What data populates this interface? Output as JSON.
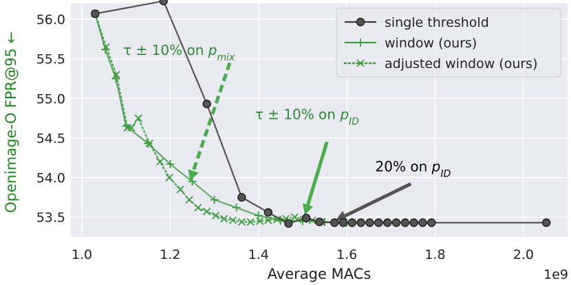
{
  "chart_data": {
    "type": "line",
    "title": "",
    "xlabel": "Average MACs",
    "ylabel": "Openimage-O FPR@95 ←",
    "x_offset_label": "1e9",
    "xlim": [
      0.975,
      2.1
    ],
    "ylim": [
      53.25,
      56.2
    ],
    "xticks": [
      1.0,
      1.2,
      1.4,
      1.6,
      1.8,
      2.0
    ],
    "xtick_labels": [
      "1.0",
      "1.2",
      "1.4",
      "1.6",
      "1.8",
      "2.0"
    ],
    "yticks": [
      53.5,
      54.0,
      54.5,
      55.0,
      55.5,
      56.0
    ],
    "ytick_labels": [
      "53.5",
      "54.0",
      "54.5",
      "55.0",
      "55.5",
      "56.0"
    ],
    "grid": true,
    "legend_position": "top-right",
    "series": [
      {
        "name": "single threshold",
        "color": "#3b3b3b",
        "marker": "circle",
        "linestyle": "solid",
        "x": [
          1.03,
          1.185,
          1.283,
          1.362,
          1.422,
          1.468,
          1.508,
          1.538,
          1.572,
          1.592,
          1.612,
          1.632,
          1.652,
          1.672,
          1.692,
          1.712,
          1.732,
          1.752,
          1.772,
          1.792,
          2.052
        ],
        "y": [
          56.07,
          56.23,
          54.93,
          53.75,
          53.56,
          53.42,
          53.49,
          53.44,
          53.43,
          53.43,
          53.43,
          53.43,
          53.43,
          53.43,
          53.43,
          53.43,
          53.43,
          53.43,
          53.43,
          53.43,
          53.43
        ]
      },
      {
        "name": "window (ours)",
        "color": "#3e9e3e",
        "marker": "plus",
        "linestyle": "solid",
        "x": [
          1.03,
          1.053,
          1.077,
          1.1,
          1.15,
          1.2,
          1.25,
          1.3,
          1.35,
          1.4,
          1.45,
          1.5,
          1.55,
          1.6
        ],
        "y": [
          56.07,
          55.62,
          55.25,
          54.65,
          54.43,
          54.17,
          53.95,
          53.72,
          53.62,
          53.52,
          53.46,
          53.45,
          53.44,
          53.43
        ]
      },
      {
        "name": "adjusted window (ours)",
        "color": "#3e9e3e",
        "marker": "x",
        "linestyle": "dotted",
        "x": [
          1.03,
          1.055,
          1.078,
          1.103,
          1.112,
          1.128,
          1.153,
          1.177,
          1.198,
          1.223,
          1.243,
          1.263,
          1.283,
          1.303,
          1.322,
          1.342,
          1.362,
          1.382,
          1.403,
          1.422,
          1.442,
          1.462,
          1.482,
          1.502,
          1.522,
          1.542
        ],
        "y": [
          56.07,
          55.65,
          55.3,
          54.63,
          54.63,
          54.75,
          54.43,
          54.2,
          54.0,
          53.85,
          53.72,
          53.62,
          53.57,
          53.52,
          53.48,
          53.46,
          53.44,
          53.44,
          53.45,
          53.46,
          53.47,
          53.48,
          53.5,
          53.47,
          53.46,
          53.44
        ]
      }
    ],
    "annotations": [
      {
        "parts": [
          {
            "t": "τ ± 10% on "
          },
          {
            "t": "p",
            "it": true
          },
          {
            "t": "mix",
            "it": true,
            "sub": true
          }
        ],
        "color": "#2e8b2e",
        "text_at": [
          1.22,
          55.55
        ],
        "arrow_from": [
          1.335,
          55.45
        ],
        "arrow_to": [
          1.245,
          53.96
        ],
        "arrow_color": "#4cad4c",
        "dashed": true
      },
      {
        "parts": [
          {
            "t": "τ ± 10% on "
          },
          {
            "t": "p",
            "it": true
          },
          {
            "t": "ID",
            "it": true,
            "sub": true
          }
        ],
        "color": "#2e8b2e",
        "text_at": [
          1.51,
          54.74
        ],
        "arrow_from": [
          1.555,
          54.45
        ],
        "arrow_to": [
          1.505,
          53.53
        ],
        "arrow_color": "#4cad4c",
        "dashed": false
      },
      {
        "parts": [
          {
            "t": "20% on "
          },
          {
            "t": "p",
            "it": true
          },
          {
            "t": "ID",
            "it": true,
            "sub": true
          }
        ],
        "color": "#000000",
        "text_at": [
          1.75,
          54.08
        ],
        "arrow_from": [
          1.745,
          53.92
        ],
        "arrow_to": [
          1.575,
          53.46
        ],
        "arrow_color": "#555555",
        "dashed": false
      }
    ]
  }
}
